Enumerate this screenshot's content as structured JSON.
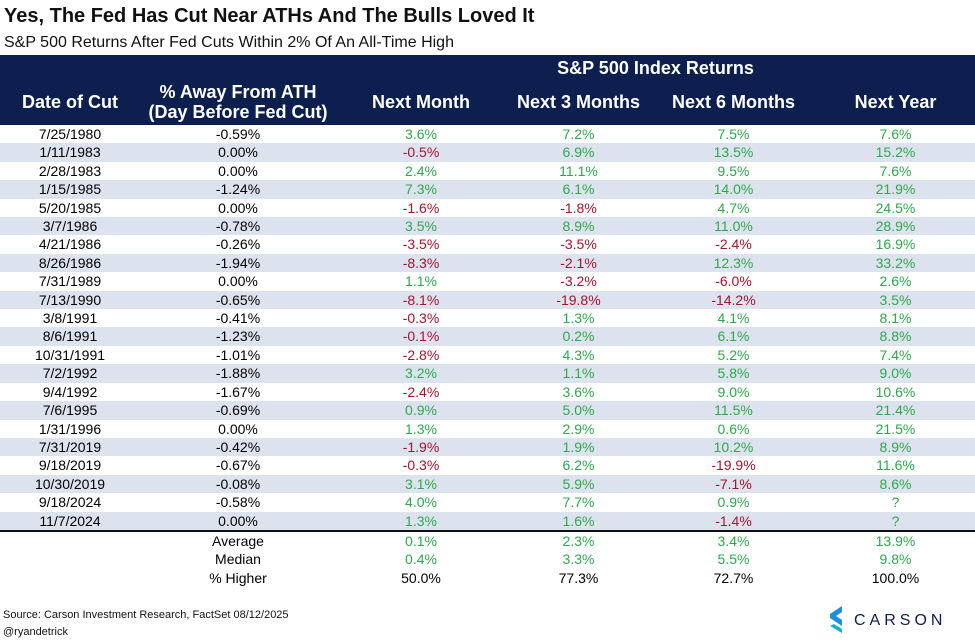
{
  "title": "Yes, The Fed Has Cut Near ATHs And The Bulls Loved It",
  "subtitle": "S&P 500 Returns After Fed Cuts Within 2% Of An All-Time High",
  "header": {
    "group": "S&P 500 Index Returns",
    "columns": [
      "Date of Cut",
      "% Away From ATH\n(Day Before Fed Cut)",
      "Next Month",
      "Next 3 Months",
      "Next 6 Months",
      "Next Year"
    ]
  },
  "colors": {
    "positive": "#2ea84a",
    "negative": "#a8122a",
    "header": "#0c1f4f",
    "stripe": "#dde3ee"
  },
  "table": {
    "rows": [
      [
        "7/25/1980",
        "-0.59%",
        "3.6%",
        "7.2%",
        "7.5%",
        "7.6%"
      ],
      [
        "1/11/1983",
        "0.00%",
        "-0.5%",
        "6.9%",
        "13.5%",
        "15.2%"
      ],
      [
        "2/28/1983",
        "0.00%",
        "2.4%",
        "11.1%",
        "9.5%",
        "7.6%"
      ],
      [
        "1/15/1985",
        "-1.24%",
        "7.3%",
        "6.1%",
        "14.0%",
        "21.9%"
      ],
      [
        "5/20/1985",
        "0.00%",
        "-1.6%",
        "-1.8%",
        "4.7%",
        "24.5%"
      ],
      [
        "3/7/1986",
        "-0.78%",
        "3.5%",
        "8.9%",
        "11.0%",
        "28.9%"
      ],
      [
        "4/21/1986",
        "-0.26%",
        "-3.5%",
        "-3.5%",
        "-2.4%",
        "16.9%"
      ],
      [
        "8/26/1986",
        "-1.94%",
        "-8.3%",
        "-2.1%",
        "12.3%",
        "33.2%"
      ],
      [
        "7/31/1989",
        "0.00%",
        "1.1%",
        "-3.2%",
        "-6.0%",
        "2.6%"
      ],
      [
        "7/13/1990",
        "-0.65%",
        "-8.1%",
        "-19.8%",
        "-14.2%",
        "3.5%"
      ],
      [
        "3/8/1991",
        "-0.41%",
        "-0.3%",
        "1.3%",
        "4.1%",
        "8.1%"
      ],
      [
        "8/6/1991",
        "-1.23%",
        "-0.1%",
        "0.2%",
        "6.1%",
        "8.8%"
      ],
      [
        "10/31/1991",
        "-1.01%",
        "-2.8%",
        "4.3%",
        "5.2%",
        "7.4%"
      ],
      [
        "7/2/1992",
        "-1.88%",
        "3.2%",
        "1.1%",
        "5.8%",
        "9.0%"
      ],
      [
        "9/4/1992",
        "-1.67%",
        "-2.4%",
        "3.6%",
        "9.0%",
        "10.6%"
      ],
      [
        "7/6/1995",
        "-0.69%",
        "0.9%",
        "5.0%",
        "11.5%",
        "21.4%"
      ],
      [
        "1/31/1996",
        "0.00%",
        "1.3%",
        "2.9%",
        "0.6%",
        "21.5%"
      ],
      [
        "7/31/2019",
        "-0.42%",
        "-1.9%",
        "1.9%",
        "10.2%",
        "8.9%"
      ],
      [
        "9/18/2019",
        "-0.67%",
        "-0.3%",
        "6.2%",
        "-19.9%",
        "11.6%"
      ],
      [
        "10/30/2019",
        "-0.08%",
        "3.1%",
        "5.9%",
        "-7.1%",
        "8.6%"
      ],
      [
        "9/18/2024",
        "-0.58%",
        "4.0%",
        "7.7%",
        "0.9%",
        "?"
      ],
      [
        "11/7/2024",
        "0.00%",
        "1.3%",
        "1.6%",
        "-1.4%",
        "?"
      ]
    ],
    "summary": [
      [
        "Average",
        "0.1%",
        "2.3%",
        "3.4%",
        "13.9%"
      ],
      [
        "Median",
        "0.4%",
        "3.3%",
        "5.5%",
        "9.8%"
      ],
      [
        "% Higher",
        "50.0%",
        "77.3%",
        "72.7%",
        "100.0%"
      ]
    ]
  },
  "footer": {
    "source": "Source: Carson Investment Research, FactSet 08/12/2025",
    "handle": "@ryandetrick",
    "logo": "CARSON"
  }
}
